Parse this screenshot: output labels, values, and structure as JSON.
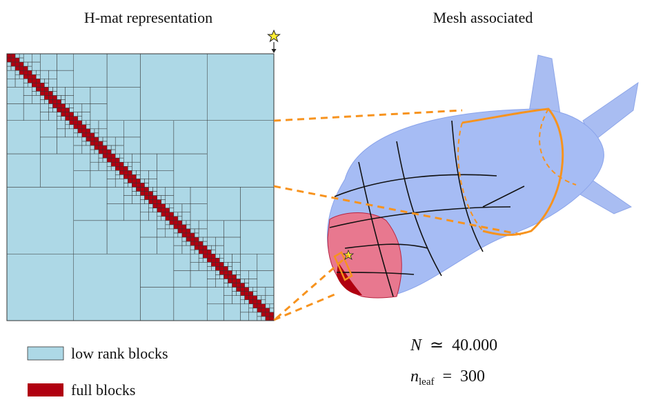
{
  "left_panel": {
    "title": "H-mat representation"
  },
  "right_panel": {
    "title": "Mesh associated"
  },
  "legend": {
    "items": [
      {
        "label": "low rank blocks",
        "color": "#add8e6"
      },
      {
        "label": "full blocks",
        "color": "#b00010"
      }
    ]
  },
  "parameters": [
    {
      "symbol": "N",
      "relation": "≃",
      "value": "40.000"
    },
    {
      "symbol": "n",
      "subscript": "leaf",
      "relation": "=",
      "value": "300"
    }
  ]
}
